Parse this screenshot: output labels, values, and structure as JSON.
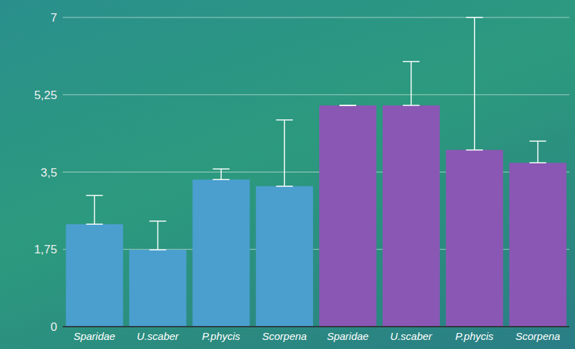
{
  "chart_data": {
    "type": "bar",
    "categories": [
      "Sparidae",
      "U.scaber",
      "P.phycis",
      "Scorpena",
      "Sparidae",
      "U.scaber",
      "P.phycis",
      "Scorpena"
    ],
    "values": [
      2.32,
      1.74,
      3.33,
      3.18,
      5.01,
      5.01,
      4.0,
      3.71
    ],
    "errors": [
      0.65,
      0.65,
      0.24,
      1.5,
      0,
      0.99,
      3.0,
      0.49
    ],
    "colors": [
      "#4a9fcf",
      "#4a9fcf",
      "#4a9fcf",
      "#4a9fcf",
      "#8a58b4",
      "#8a58b4",
      "#8a58b4",
      "#8a58b4"
    ],
    "ylim": [
      0,
      7
    ],
    "yticks": [
      0,
      {
        "value": 1.75,
        "label": "1,75"
      },
      {
        "value": 3.5,
        "label": "3,5"
      },
      {
        "value": 5.25,
        "label": "5,25"
      },
      7
    ],
    "grid": true
  }
}
